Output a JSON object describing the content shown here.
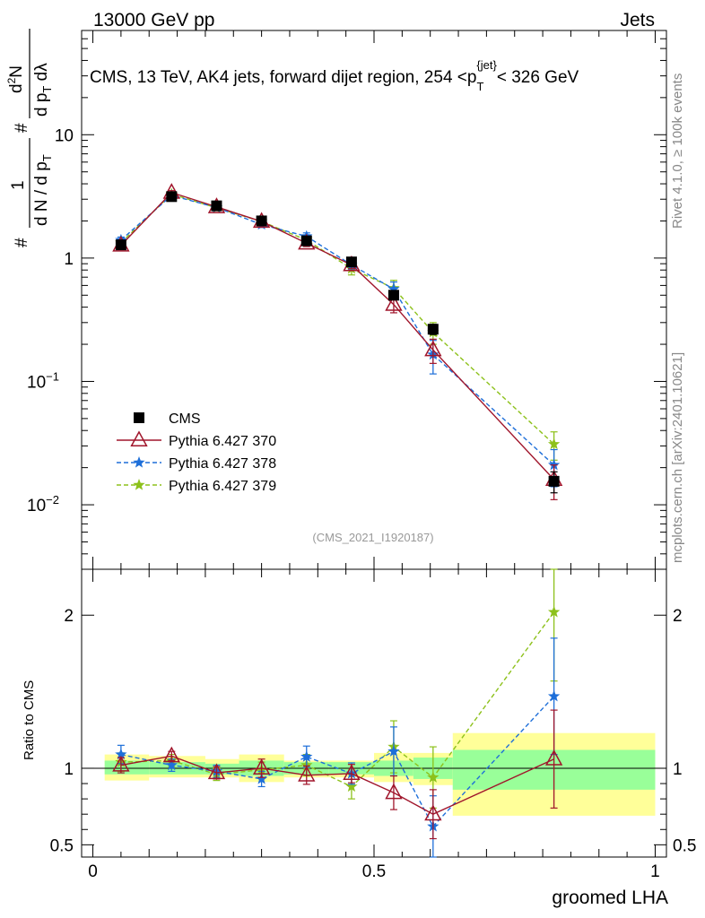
{
  "header": {
    "left": "13000 GeV pp",
    "right": "Jets"
  },
  "chart_data": [
    {
      "type": "scatter",
      "panel": "main",
      "title": "CMS, 13 TeV, AK4 jets, forward dijet region, 254 <p_T^{jet}< 326 GeV",
      "title_parts": {
        "pre": "CMS, 13 TeV, AK4 jets, forward dijet region, 254 <p",
        "sub": "T",
        "sup": "{jet}",
        "post": "< 326 GeV"
      },
      "ylabel": "1/(dN/dp_T) d²N/(dp_T dλ)",
      "ylabel_parts": {
        "frac1_num": "1",
        "frac1_den_a": "d N / d p",
        "frac1_den_sub": "T",
        "frac2_num_a": "d",
        "frac2_num_sup": "2",
        "frac2_num_b": "N",
        "frac2_den_a": "d p",
        "frac2_den_sub": "T",
        "frac2_den_b": " dλ",
        "hash": "#"
      },
      "yscale": "log",
      "ylim": [
        0.003,
        70
      ],
      "xlim": [
        -0.02,
        1.02
      ],
      "y_ticks": [
        {
          "value": 0.01,
          "base": "10",
          "exp": "−2"
        },
        {
          "value": 0.1,
          "base": "10",
          "exp": "−1"
        },
        {
          "value": 1,
          "base": "1",
          "exp": ""
        },
        {
          "value": 10,
          "base": "10",
          "exp": ""
        }
      ],
      "side_labels": {
        "rivet": "Rivet 4.1.0, ≥ 100k events",
        "mcplots": "mcplots.cern.ch [arXiv:2401.10621]"
      },
      "watermark": "(CMS_2021_I1920187)",
      "bins": [
        [
          0.0,
          0.1
        ],
        [
          0.1,
          0.2
        ],
        [
          0.2,
          0.26
        ],
        [
          0.26,
          0.34
        ],
        [
          0.34,
          0.42
        ],
        [
          0.42,
          0.5
        ],
        [
          0.5,
          0.57
        ],
        [
          0.57,
          0.64
        ],
        [
          0.64,
          1.0
        ]
      ],
      "x": [
        0.05,
        0.14,
        0.22,
        0.3,
        0.38,
        0.46,
        0.535,
        0.605,
        0.82
      ],
      "series": [
        {
          "name": "CMS",
          "color": "#000000",
          "marker": "square",
          "line": "none",
          "values": [
            1.28,
            3.15,
            2.65,
            2.0,
            1.38,
            0.93,
            0.5,
            0.265,
            0.0155
          ],
          "err": [
            0.05,
            0.1,
            0.08,
            0.07,
            0.06,
            0.05,
            0.035,
            0.025,
            0.003
          ]
        },
        {
          "name": "Pythia 6.427 370",
          "color": "#a0152b",
          "marker": "triangle",
          "line": "solid",
          "values": [
            1.27,
            3.4,
            2.6,
            1.98,
            1.32,
            0.88,
            0.42,
            0.18,
            0.016
          ],
          "err": [
            0.06,
            0.12,
            0.09,
            0.1,
            0.08,
            0.06,
            0.06,
            0.04,
            0.005
          ]
        },
        {
          "name": "Pythia 6.427 378",
          "color": "#1e6fd9",
          "marker": "star",
          "line": "dashed",
          "values": [
            1.4,
            3.22,
            2.57,
            1.87,
            1.5,
            0.88,
            0.56,
            0.165,
            0.021
          ],
          "err": [
            0.08,
            0.12,
            0.09,
            0.1,
            0.1,
            0.08,
            0.08,
            0.05,
            0.007
          ]
        },
        {
          "name": "Pythia 6.427 379",
          "color": "#8dc11b",
          "marker": "star",
          "line": "dashed",
          "values": [
            1.33,
            3.3,
            2.55,
            1.98,
            1.4,
            0.82,
            0.57,
            0.25,
            0.031
          ],
          "err": [
            0.08,
            0.12,
            0.09,
            0.1,
            0.1,
            0.09,
            0.09,
            0.05,
            0.008
          ]
        }
      ],
      "legend_position": "bottom-left"
    },
    {
      "type": "scatter",
      "panel": "ratio",
      "ylabel": "Ratio to CMS",
      "xlabel": "groomed LHA",
      "ylim": [
        0.42,
        2.3
      ],
      "xlim": [
        -0.02,
        1.02
      ],
      "x_ticks": [
        {
          "value": 0,
          "label": "0"
        },
        {
          "value": 0.5,
          "label": "0.5"
        },
        {
          "value": 1,
          "label": "1"
        }
      ],
      "y_ticks": [
        {
          "value": 0.5,
          "label": "0.5"
        },
        {
          "value": 1,
          "label": "1"
        },
        {
          "value": 2,
          "label": "2"
        }
      ],
      "band_stat": [
        [
          0.96,
          1.05
        ],
        [
          0.96,
          1.04
        ],
        [
          0.96,
          1.03
        ],
        [
          0.95,
          1.05
        ],
        [
          0.96,
          1.04
        ],
        [
          0.96,
          1.04
        ],
        [
          0.95,
          1.05
        ],
        [
          0.93,
          1.07
        ],
        [
          0.86,
          1.12
        ]
      ],
      "band_total": [
        [
          0.92,
          1.09
        ],
        [
          0.94,
          1.08
        ],
        [
          0.94,
          1.06
        ],
        [
          0.91,
          1.09
        ],
        [
          0.94,
          1.05
        ],
        [
          0.94,
          1.05
        ],
        [
          0.91,
          1.1
        ],
        [
          0.89,
          1.1
        ],
        [
          0.69,
          1.23
        ]
      ],
      "series": [
        {
          "name": "Pythia 6.427 370",
          "values": [
            1.02,
            1.08,
            0.97,
            1.0,
            0.955,
            0.965,
            0.84,
            0.7,
            1.06
          ],
          "err": [
            0.05,
            0.03,
            0.04,
            0.06,
            0.06,
            0.06,
            0.11,
            0.16,
            0.32
          ]
        },
        {
          "name": "Pythia 6.427 378",
          "values": [
            1.09,
            1.02,
            0.98,
            0.93,
            1.075,
            0.965,
            1.11,
            0.62,
            1.47
          ],
          "err": [
            0.06,
            0.04,
            0.04,
            0.05,
            0.07,
            0.07,
            0.16,
            0.2,
            0.38
          ]
        },
        {
          "name": "Pythia 6.427 379",
          "values": [
            1.04,
            1.05,
            0.96,
            0.99,
            1.02,
            0.88,
            1.14,
            0.94,
            2.02
          ],
          "err": [
            0.06,
            0.04,
            0.04,
            0.05,
            0.07,
            0.08,
            0.17,
            0.2,
            0.45
          ]
        }
      ]
    }
  ]
}
